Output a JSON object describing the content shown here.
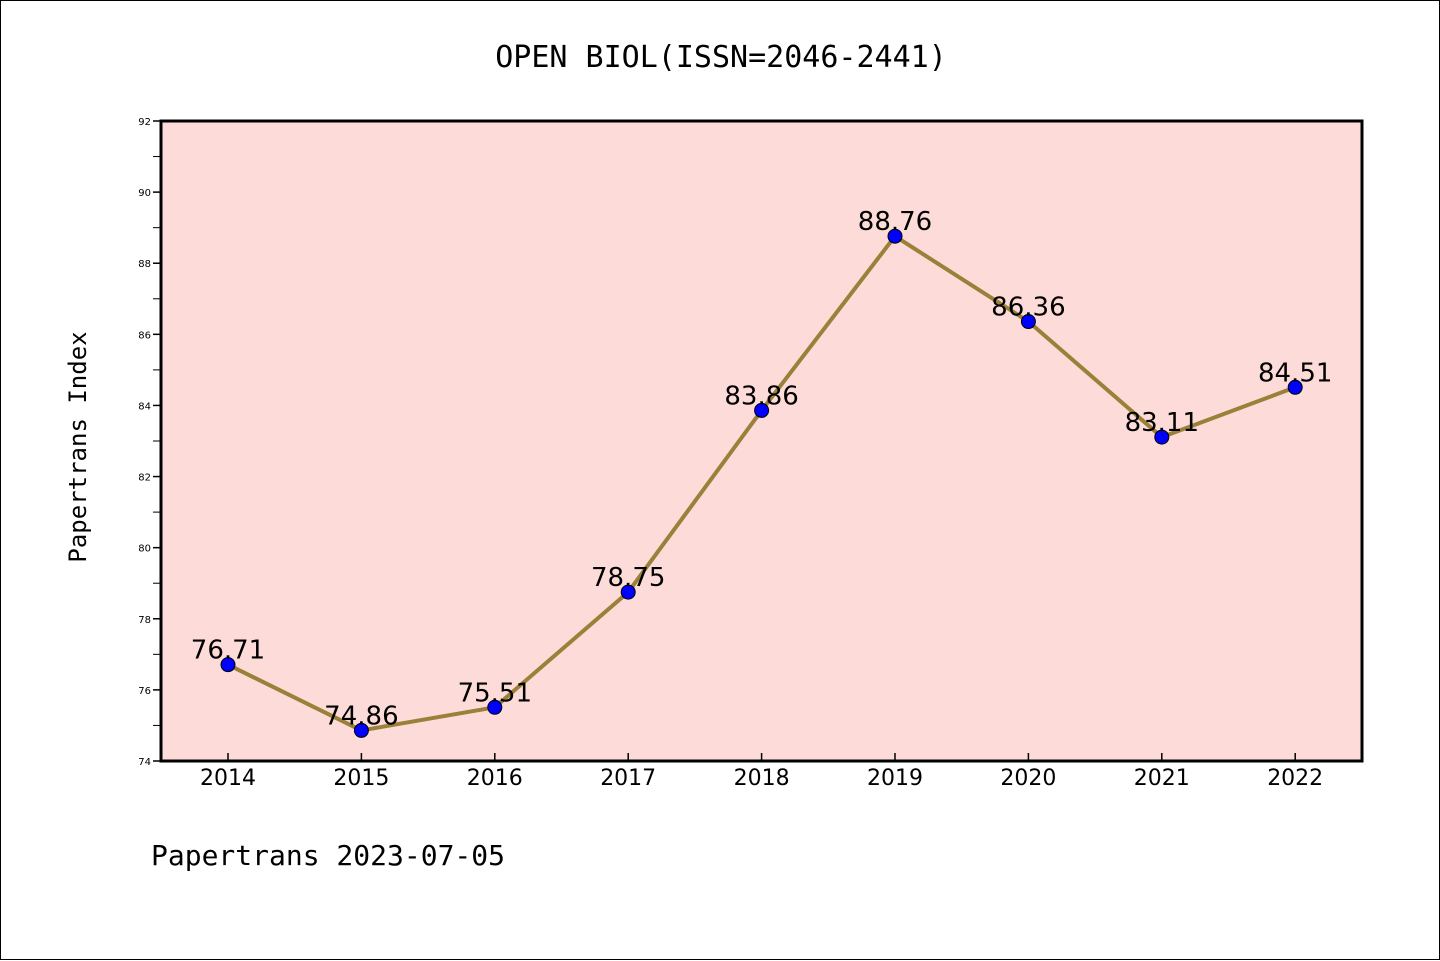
{
  "chart_data": {
    "type": "line",
    "title": "OPEN BIOL(ISSN=2046-2441)",
    "ylabel": "Papertrans Index",
    "xlabel": "",
    "categories": [
      "2014",
      "2015",
      "2016",
      "2017",
      "2018",
      "2019",
      "2020",
      "2021",
      "2022"
    ],
    "series": [
      {
        "values": [
          76.71,
          74.86,
          75.51,
          78.75,
          83.86,
          88.76,
          86.36,
          83.11,
          84.51
        ],
        "data_labels": [
          "76.71",
          "74.86",
          "75.51",
          "78.75",
          "83.86",
          "88.76",
          "86.36",
          "83.11",
          "84.51"
        ]
      }
    ],
    "ylim": [
      74,
      92
    ],
    "yticks": [
      "74",
      "76",
      "78",
      "80",
      "82",
      "84",
      "86",
      "88",
      "90",
      "92"
    ],
    "grid": false,
    "plot_background": "#fddbd8",
    "line_color": "#9a8038",
    "marker_color": "#0000ff"
  },
  "footer": "Papertrans 2023-07-05"
}
